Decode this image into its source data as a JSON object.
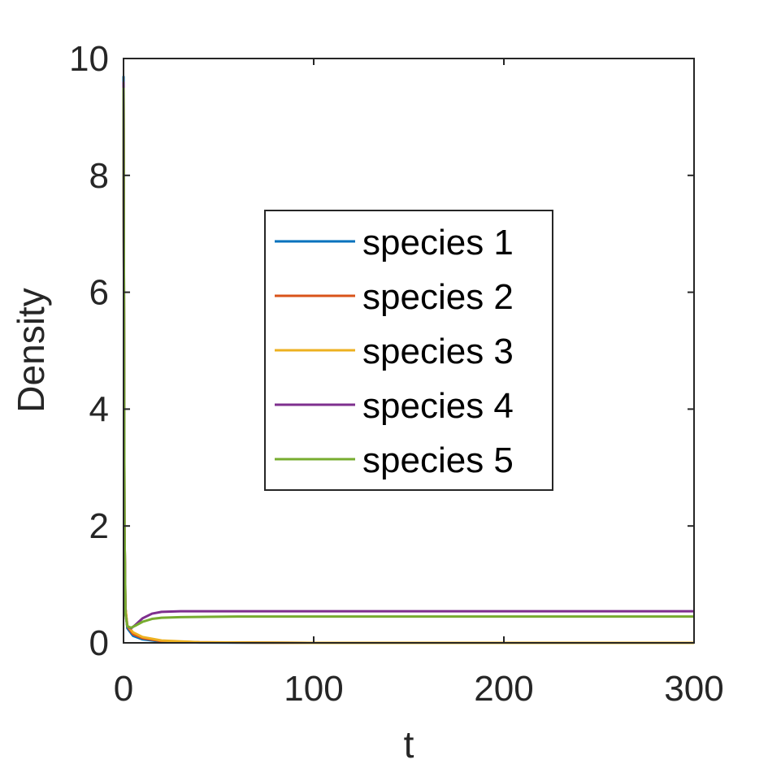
{
  "chart_data": {
    "type": "line",
    "title": "",
    "xlabel": "t",
    "ylabel": "Density",
    "xlim": [
      0,
      300
    ],
    "ylim": [
      0,
      10
    ],
    "xticks": [
      0,
      100,
      200,
      300
    ],
    "yticks": [
      0,
      2,
      4,
      6,
      8,
      10
    ],
    "grid": false,
    "legend_position": "center",
    "series": [
      {
        "name": "species 1",
        "color": "#0072BD",
        "points": [
          [
            0,
            9.7
          ],
          [
            0.5,
            2.0
          ],
          [
            1,
            0.6
          ],
          [
            2,
            0.25
          ],
          [
            5,
            0.12
          ],
          [
            10,
            0.06
          ],
          [
            20,
            0.02
          ],
          [
            40,
            0.005
          ],
          [
            100,
            0.0
          ],
          [
            300,
            0.0
          ]
        ]
      },
      {
        "name": "species 2",
        "color": "#D95319",
        "points": [
          [
            0,
            9.6
          ],
          [
            0.5,
            2.0
          ],
          [
            1,
            0.6
          ],
          [
            2,
            0.28
          ],
          [
            5,
            0.15
          ],
          [
            10,
            0.08
          ],
          [
            20,
            0.03
          ],
          [
            40,
            0.01
          ],
          [
            100,
            0.0
          ],
          [
            300,
            0.0
          ]
        ]
      },
      {
        "name": "species 3",
        "color": "#EDB120",
        "points": [
          [
            0,
            9.5
          ],
          [
            0.5,
            2.0
          ],
          [
            1,
            0.6
          ],
          [
            2,
            0.3
          ],
          [
            5,
            0.18
          ],
          [
            10,
            0.1
          ],
          [
            20,
            0.04
          ],
          [
            40,
            0.01
          ],
          [
            100,
            0.0
          ],
          [
            300,
            0.0
          ]
        ]
      },
      {
        "name": "species 4",
        "color": "#7E2F8E",
        "points": [
          [
            0,
            9.6
          ],
          [
            0.5,
            2.0
          ],
          [
            1,
            0.5
          ],
          [
            2,
            0.28
          ],
          [
            4,
            0.25
          ],
          [
            6,
            0.3
          ],
          [
            10,
            0.42
          ],
          [
            15,
            0.5
          ],
          [
            20,
            0.53
          ],
          [
            30,
            0.54
          ],
          [
            100,
            0.54
          ],
          [
            300,
            0.54
          ]
        ]
      },
      {
        "name": "species 5",
        "color": "#77AC30",
        "points": [
          [
            0,
            9.5
          ],
          [
            0.5,
            2.0
          ],
          [
            1,
            0.5
          ],
          [
            2,
            0.28
          ],
          [
            4,
            0.26
          ],
          [
            6,
            0.29
          ],
          [
            10,
            0.36
          ],
          [
            15,
            0.41
          ],
          [
            20,
            0.43
          ],
          [
            30,
            0.44
          ],
          [
            60,
            0.45
          ],
          [
            100,
            0.45
          ],
          [
            300,
            0.45
          ]
        ]
      }
    ]
  }
}
